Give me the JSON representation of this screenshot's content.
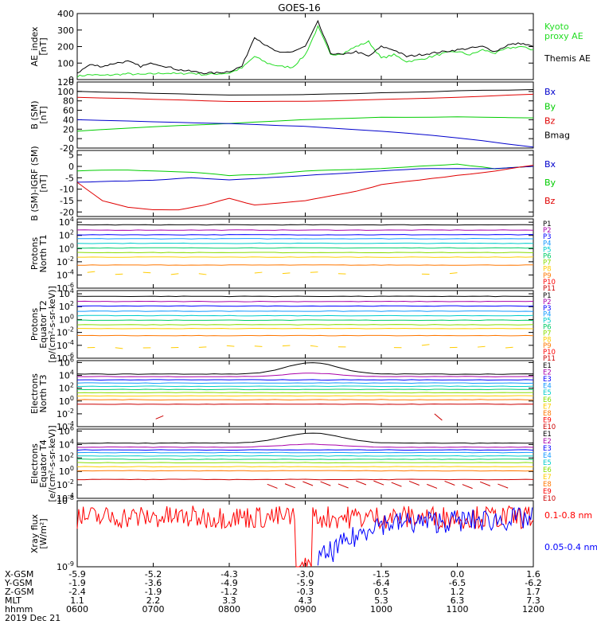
{
  "title": "GOES-16",
  "colors": {
    "black": "#000000",
    "red": "#e00000",
    "green": "#00cc00",
    "blue": "#0000cc",
    "bright_green": "#22dd22",
    "xray_red": "#ff0000",
    "xray_blue": "#0000ff",
    "channels": [
      "#000000",
      "#aa00aa",
      "#0000ff",
      "#1199ff",
      "#00cccc",
      "#00cc66",
      "#88dd00",
      "#ffcc00",
      "#ff7700",
      "#ff0000",
      "#cc0000"
    ]
  },
  "chart_data": [
    {
      "type": "line",
      "ylabel": [
        "AE_index",
        "[nT]"
      ],
      "ylim": [
        0,
        400
      ],
      "yscale": "linear",
      "yticks": [
        "0",
        "100",
        "200",
        "300",
        "400"
      ],
      "legend": [
        {
          "text": "Kyoto",
          "color": "bright_green"
        },
        {
          "text": "proxy AE",
          "color": "bright_green"
        },
        {
          "text": "Themis AE",
          "color": "black"
        }
      ],
      "series": [
        {
          "name": "Kyoto",
          "color": "bright_green",
          "x": [
            0,
            10,
            20,
            30,
            40,
            50,
            60,
            70,
            80,
            90,
            100,
            110,
            120,
            130,
            140,
            150,
            160,
            170,
            180,
            190,
            200,
            210,
            220,
            230,
            240,
            250,
            260,
            270,
            280,
            290,
            300,
            310,
            320,
            330,
            340,
            350,
            360
          ],
          "y": [
            20,
            30,
            25,
            30,
            35,
            30,
            35,
            40,
            35,
            40,
            30,
            35,
            40,
            70,
            140,
            100,
            80,
            75,
            150,
            320,
            150,
            160,
            200,
            230,
            130,
            150,
            110,
            120,
            140,
            160,
            170,
            150,
            180,
            160,
            190,
            200,
            180
          ]
        },
        {
          "name": "Themis AE",
          "color": "black",
          "x": [
            0,
            10,
            20,
            30,
            40,
            50,
            60,
            70,
            80,
            90,
            100,
            110,
            120,
            130,
            140,
            150,
            160,
            170,
            180,
            190,
            200,
            210,
            220,
            230,
            240,
            250,
            260,
            270,
            280,
            290,
            300,
            310,
            320,
            330,
            340,
            350,
            360
          ],
          "y": [
            40,
            90,
            80,
            100,
            110,
            80,
            100,
            80,
            60,
            50,
            40,
            40,
            50,
            80,
            260,
            200,
            160,
            170,
            200,
            350,
            160,
            150,
            170,
            140,
            200,
            180,
            140,
            150,
            160,
            170,
            180,
            190,
            200,
            170,
            210,
            220,
            200
          ]
        }
      ]
    },
    {
      "type": "line",
      "ylabel": [
        "B (SM)",
        "[nT]"
      ],
      "ylim": [
        -20,
        120
      ],
      "yscale": "linear",
      "yticks": [
        "-20",
        "0",
        "20",
        "40",
        "60",
        "80",
        "100",
        "120"
      ],
      "legend": [
        {
          "text": "Bx",
          "color": "blue"
        },
        {
          "text": "By",
          "color": "green"
        },
        {
          "text": "Bz",
          "color": "red"
        },
        {
          "text": "Bmag",
          "color": "black"
        }
      ],
      "series": [
        {
          "name": "Bmag",
          "color": "black",
          "x": [
            0,
            60,
            120,
            180,
            240,
            300,
            360
          ],
          "y": [
            100,
            96,
            92,
            93,
            97,
            101,
            104
          ]
        },
        {
          "name": "Bz",
          "color": "red",
          "x": [
            0,
            60,
            120,
            180,
            240,
            300,
            360
          ],
          "y": [
            88,
            83,
            79,
            79,
            83,
            88,
            94
          ]
        },
        {
          "name": "By",
          "color": "green",
          "x": [
            0,
            60,
            120,
            180,
            240,
            300,
            360
          ],
          "y": [
            16,
            25,
            32,
            40,
            45,
            46,
            44
          ]
        },
        {
          "name": "Bx",
          "color": "blue",
          "x": [
            0,
            60,
            120,
            180,
            240,
            300,
            360
          ],
          "y": [
            40,
            36,
            32,
            26,
            16,
            2,
            -18
          ]
        }
      ]
    },
    {
      "type": "line",
      "ylabel": [
        "B (SM)-IGRF (SM)",
        "[nT]"
      ],
      "ylim": [
        -22,
        7
      ],
      "yscale": "linear",
      "yticks": [
        "-20",
        "-15",
        "-10",
        "-5",
        "0",
        "5"
      ],
      "legend": [
        {
          "text": "Bx",
          "color": "blue"
        },
        {
          "text": "By",
          "color": "green"
        },
        {
          "text": "Bz",
          "color": "red"
        }
      ],
      "series": [
        {
          "name": "By",
          "color": "green",
          "x": [
            0,
            30,
            60,
            90,
            120,
            150,
            180,
            210,
            240,
            270,
            300,
            330,
            360
          ],
          "y": [
            -2,
            -1.5,
            -2,
            -2.5,
            -4,
            -3.5,
            -2,
            -1.5,
            -1,
            0,
            1,
            -1,
            0
          ]
        },
        {
          "name": "Bx",
          "color": "blue",
          "x": [
            0,
            30,
            60,
            90,
            120,
            150,
            180,
            210,
            240,
            270,
            300,
            330,
            360
          ],
          "y": [
            -7,
            -6.5,
            -6,
            -5,
            -6,
            -5,
            -4,
            -3,
            -2,
            -1,
            -1,
            -1,
            0
          ]
        },
        {
          "name": "Bz",
          "color": "red",
          "x": [
            0,
            20,
            40,
            60,
            80,
            100,
            120,
            140,
            160,
            180,
            200,
            220,
            240,
            270,
            300,
            330,
            360
          ],
          "y": [
            -7,
            -15,
            -18,
            -19,
            -19,
            -17,
            -14,
            -17,
            -16,
            -15,
            -13,
            -11,
            -8,
            -6,
            -4,
            -2,
            0.5
          ]
        }
      ]
    },
    {
      "type": "line",
      "ylabel": [
        "Protons",
        "North T1"
      ],
      "ylim": [
        -6,
        4.5
      ],
      "yscale": "log",
      "yticks": [
        "10^4",
        "10^2",
        "10^0",
        "10^-2",
        "10^-4",
        "10^-6"
      ],
      "legend": [
        {
          "text": "P1",
          "color": 0
        },
        {
          "text": "P2",
          "color": 1
        },
        {
          "text": "P3",
          "color": 2
        },
        {
          "text": "P4",
          "color": 3
        },
        {
          "text": "P5",
          "color": 4
        },
        {
          "text": "P6",
          "color": 5
        },
        {
          "text": "P7",
          "color": 6
        },
        {
          "text": "P8",
          "color": 7
        },
        {
          "text": "P9",
          "color": 8
        },
        {
          "text": "P10",
          "color": 9
        },
        {
          "text": "P11",
          "color": 10
        }
      ],
      "levels": [
        3.6,
        2.8,
        2.1,
        1.5,
        0.8,
        0.1,
        -0.6,
        -1.3,
        -2.5,
        -3.8
      ],
      "level_colors": [
        0,
        1,
        2,
        3,
        4,
        5,
        6,
        7,
        8,
        7
      ],
      "dashed_from": 9
    },
    {
      "type": "line",
      "ylabel": [
        "Protons",
        "Equator T2",
        "[p/(cm²-s-sr-keV)]"
      ],
      "ylim": [
        -6,
        4.5
      ],
      "yscale": "log",
      "yticks": [
        "10^4",
        "10^2",
        "10^0",
        "10^-2",
        "10^-4",
        "10^-6"
      ],
      "legend": [
        {
          "text": "P1",
          "color": 0
        },
        {
          "text": "P2",
          "color": 1
        },
        {
          "text": "P3",
          "color": 2
        },
        {
          "text": "P4",
          "color": 3
        },
        {
          "text": "P5",
          "color": 4
        },
        {
          "text": "P6",
          "color": 5
        },
        {
          "text": "P7",
          "color": 6
        },
        {
          "text": "P8",
          "color": 7
        },
        {
          "text": "P9",
          "color": 8
        },
        {
          "text": "P10",
          "color": 9
        },
        {
          "text": "P11",
          "color": 10
        }
      ],
      "levels": [
        3.6,
        2.8,
        2.1,
        1.3,
        0.6,
        -0.1,
        -0.8,
        -1.4,
        -2.5,
        -4.2
      ],
      "level_colors": [
        0,
        1,
        2,
        3,
        4,
        5,
        6,
        7,
        8,
        7
      ],
      "dashed_from": 9
    },
    {
      "type": "line",
      "ylabel": [
        "Electrons",
        "North T3"
      ],
      "ylim": [
        -4,
        6.3
      ],
      "yscale": "log",
      "yticks": [
        "10^6",
        "10^4",
        "10^2",
        "10^0",
        "10^-2",
        "10^-4"
      ],
      "legend": [
        {
          "text": "E1",
          "color": 0
        },
        {
          "text": "E2",
          "color": 1
        },
        {
          "text": "E3",
          "color": 2
        },
        {
          "text": "E4",
          "color": 3
        },
        {
          "text": "E5",
          "color": 4
        },
        {
          "text": "E6",
          "color": 6
        },
        {
          "text": "E7",
          "color": 7
        },
        {
          "text": "E8",
          "color": 8
        },
        {
          "text": "E9",
          "color": 9
        },
        {
          "text": "E10",
          "color": 10
        }
      ],
      "levels": [
        4.2,
        3.8,
        3.3,
        2.8,
        2.3,
        1.8,
        1.3,
        0.8,
        0.2,
        -0.5
      ],
      "level_colors": [
        0,
        1,
        2,
        3,
        4,
        5,
        6,
        7,
        8,
        10
      ],
      "bump": {
        "index": 0,
        "x_center": 185,
        "width": 40,
        "height": 1.8
      }
    },
    {
      "type": "line",
      "ylabel": [
        "Electrons",
        "Equator T4",
        "[e/(cm²-s-sr-keV)]"
      ],
      "ylim": [
        -4,
        6.3
      ],
      "yscale": "log",
      "yticks": [
        "10^6",
        "10^4",
        "10^2",
        "10^0",
        "10^-2",
        "10^-4"
      ],
      "legend": [
        {
          "text": "E1",
          "color": 0
        },
        {
          "text": "E2",
          "color": 1
        },
        {
          "text": "E3",
          "color": 2
        },
        {
          "text": "E4",
          "color": 3
        },
        {
          "text": "E5",
          "color": 4
        },
        {
          "text": "E6",
          "color": 6
        },
        {
          "text": "E7",
          "color": 7
        },
        {
          "text": "E8",
          "color": 8
        },
        {
          "text": "E9",
          "color": 9
        },
        {
          "text": "E10",
          "color": 10
        }
      ],
      "levels": [
        4.2,
        3.6,
        3.2,
        2.8,
        2.3,
        1.8,
        1.3,
        0.7,
        0.1,
        -1.2
      ],
      "level_colors": [
        0,
        1,
        2,
        3,
        4,
        5,
        6,
        7,
        8,
        10
      ],
      "bump": {
        "index": 0,
        "x_center": 185,
        "width": 45,
        "height": 1.5
      }
    },
    {
      "type": "line",
      "ylabel": [
        "Xray flux",
        "[W/m²]"
      ],
      "ylim": [
        -9,
        -8
      ],
      "yscale": "log",
      "yticks": [
        "10^-8",
        "10^-9"
      ],
      "legend": [
        {
          "text": "0.1-0.8 nm",
          "color": "xray_red"
        },
        {
          "text": "0.05-0.4 nm",
          "color": "xray_blue"
        }
      ]
    }
  ],
  "x_axis": {
    "range": [
      0,
      360
    ],
    "tick_minutes": [
      0,
      60,
      120,
      180,
      240,
      300,
      360
    ],
    "rows": [
      {
        "label": "X-GSM",
        "values": [
          "-5.9",
          "-5.2",
          "-4.3",
          "-3.0",
          "-1.5",
          "0.0",
          "1.6"
        ]
      },
      {
        "label": "Y-GSM",
        "values": [
          "-1.9",
          "-3.6",
          "-4.9",
          "-5.9",
          "-6.4",
          "-6.5",
          "-6.2"
        ]
      },
      {
        "label": "Z-GSM",
        "values": [
          "-2.4",
          "-1.9",
          "-1.2",
          "-0.3",
          "0.5",
          "1.2",
          "1.7"
        ]
      },
      {
        "label": "MLT",
        "values": [
          "1.1",
          "2.2",
          "3.3",
          "4.3",
          "5.3",
          "6.3",
          "7.3"
        ]
      },
      {
        "label": "hhmm",
        "values": [
          "0600",
          "0700",
          "0800",
          "0900",
          "1000",
          "1100",
          "1200"
        ]
      }
    ],
    "date": "2019 Dec 21"
  }
}
